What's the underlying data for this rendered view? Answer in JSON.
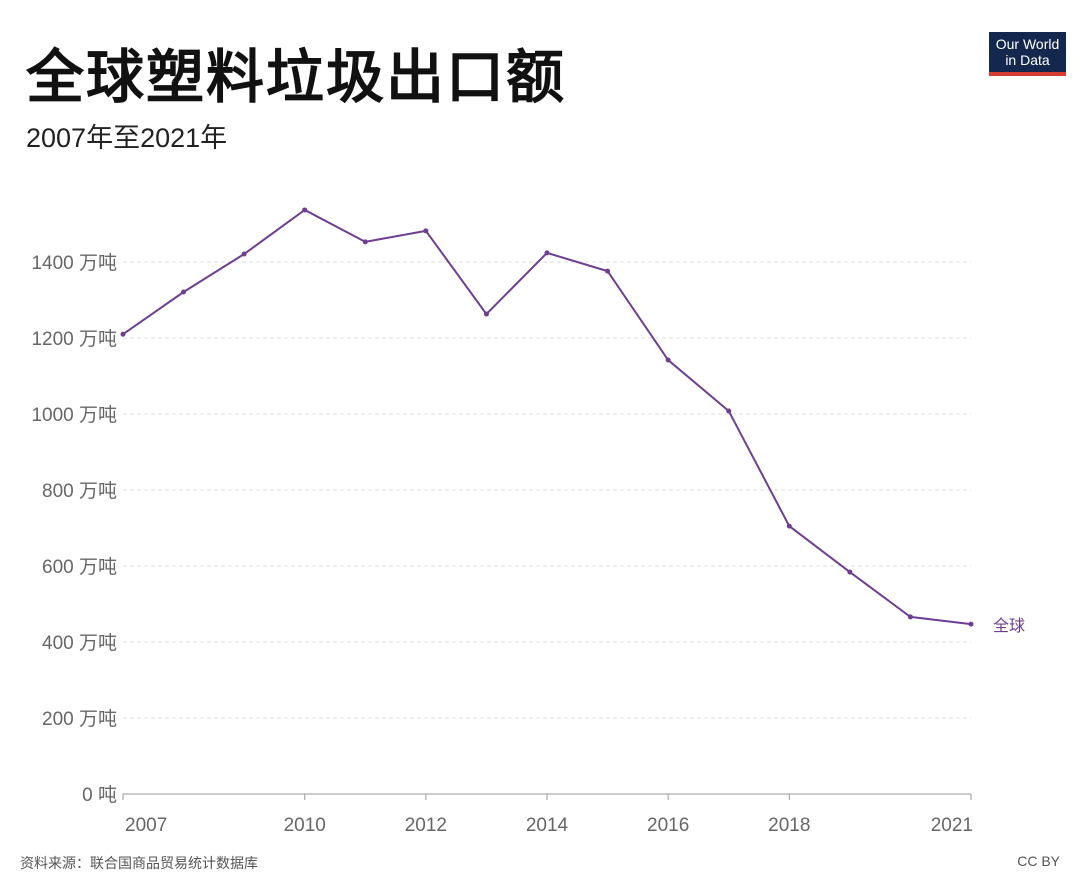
{
  "title": "全球塑料垃圾出口额",
  "subtitle": "2007年至2021年",
  "logo": {
    "line1": "Our World",
    "line2": "in Data"
  },
  "source": "资料来源：联合国商品贸易统计数据库",
  "license": "CC BY",
  "colors": {
    "series": "#6d3e91",
    "grid": "#dddddd",
    "logo_bg": "#14284d",
    "logo_bar": "#d73c32"
  },
  "chart_data": {
    "type": "line",
    "title": "全球塑料垃圾出口额",
    "subtitle": "2007年至2021年",
    "ylim": [
      0,
      1550
    ],
    "yticks": [
      0,
      200,
      400,
      600,
      800,
      1000,
      1200,
      1400
    ],
    "ytick_labels": [
      "0 吨",
      "200 万吨",
      "400 万吨",
      "600 万吨",
      "800 万吨",
      "1000 万吨",
      "1200 万吨",
      "1400 万吨"
    ],
    "xticks": [
      2007,
      2010,
      2012,
      2014,
      2016,
      2018,
      2021
    ],
    "xtick_labels": [
      "2007",
      "2010",
      "2012",
      "2014",
      "2016",
      "2018",
      "2021"
    ],
    "grid": "horizontal dashed",
    "series": [
      {
        "name": "全球",
        "x": [
          2007,
          2008,
          2009,
          2010,
          2011,
          2012,
          2013,
          2014,
          2015,
          2016,
          2017,
          2018,
          2019,
          2020,
          2021
        ],
        "values": [
          1210,
          1321,
          1421,
          1537,
          1453,
          1482,
          1263,
          1424,
          1376,
          1142,
          1008,
          705,
          584,
          466,
          447
        ]
      }
    ]
  }
}
